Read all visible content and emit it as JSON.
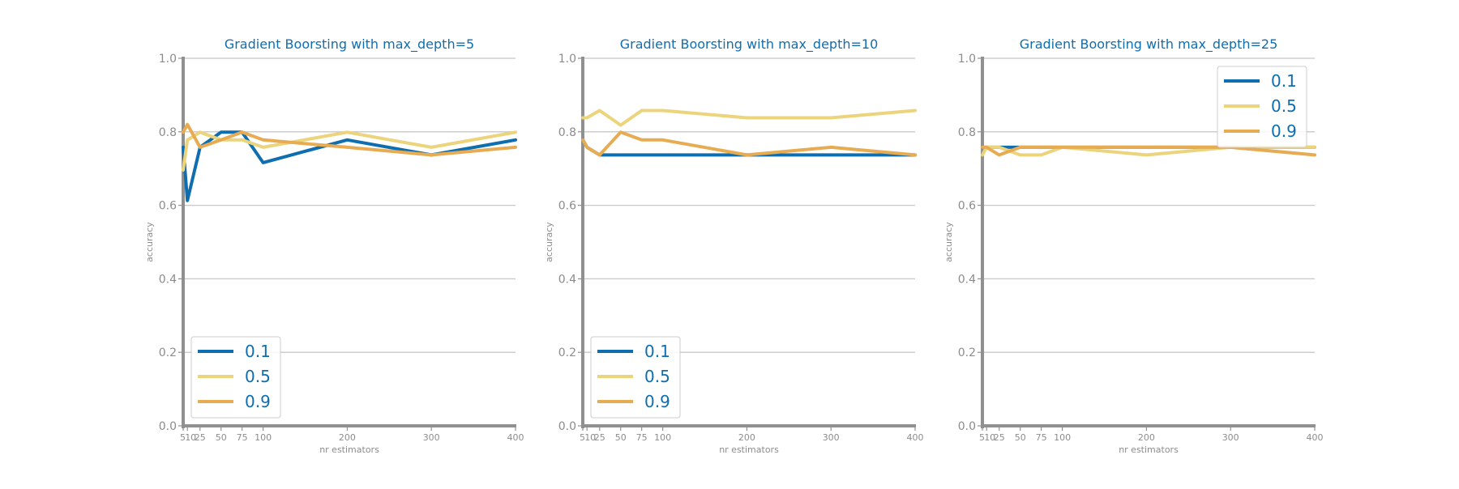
{
  "colors": {
    "series_0.1": "#0f6eaf",
    "series_0.5": "#ecd47c",
    "series_0.9": "#e7ab52",
    "axis": "#909090",
    "grid": "#c8c8c8",
    "title": "#0f6eaf",
    "tick_text": "#8c8c8c"
  },
  "chart_data": [
    {
      "type": "line",
      "title": "Gradient Boorsting with max_depth=5",
      "xlabel": "nr estimators",
      "ylabel": "accuracy",
      "x": [
        5,
        10,
        25,
        50,
        75,
        100,
        200,
        300,
        400
      ],
      "x_ticks": [
        5,
        10,
        25,
        50,
        75,
        100,
        200,
        300,
        400
      ],
      "xlim": [
        5,
        400
      ],
      "ylim": [
        0.0,
        1.0
      ],
      "y_ticks": [
        "0.0",
        "0.2",
        "0.4",
        "0.6",
        "0.8",
        "1.0"
      ],
      "grid": "horizontal",
      "legend_position": "lower-left",
      "series": [
        {
          "name": "0.1",
          "values": [
            0.758,
            0.613,
            0.758,
            0.799,
            0.799,
            0.716,
            0.778,
            0.737,
            0.778
          ]
        },
        {
          "name": "0.5",
          "values": [
            0.696,
            0.778,
            0.799,
            0.778,
            0.778,
            0.758,
            0.799,
            0.758,
            0.799
          ]
        },
        {
          "name": "0.9",
          "values": [
            0.799,
            0.82,
            0.758,
            0.778,
            0.799,
            0.778,
            0.758,
            0.737,
            0.758
          ]
        }
      ]
    },
    {
      "type": "line",
      "title": "Gradient Boorsting with max_depth=10",
      "xlabel": "nr estimators",
      "ylabel": "accuracy",
      "x": [
        5,
        10,
        25,
        50,
        75,
        100,
        200,
        300,
        400
      ],
      "x_ticks": [
        5,
        10,
        25,
        50,
        75,
        100,
        200,
        300,
        400
      ],
      "xlim": [
        5,
        400
      ],
      "ylim": [
        0.0,
        1.0
      ],
      "y_ticks": [
        "0.0",
        "0.2",
        "0.4",
        "0.6",
        "0.8",
        "1.0"
      ],
      "grid": "horizontal",
      "legend_position": "lower-left",
      "series": [
        {
          "name": "0.1",
          "values": [
            0.778,
            0.758,
            0.737,
            0.737,
            0.737,
            0.737,
            0.737,
            0.737,
            0.737
          ]
        },
        {
          "name": "0.5",
          "values": [
            0.838,
            0.838,
            0.858,
            0.818,
            0.858,
            0.858,
            0.838,
            0.838,
            0.858
          ]
        },
        {
          "name": "0.9",
          "values": [
            0.778,
            0.758,
            0.737,
            0.799,
            0.778,
            0.778,
            0.737,
            0.758,
            0.737
          ]
        }
      ]
    },
    {
      "type": "line",
      "title": "Gradient Boorsting with max_depth=25",
      "xlabel": "nr estimators",
      "ylabel": "accuracy",
      "x": [
        5,
        10,
        25,
        50,
        75,
        100,
        200,
        300,
        400
      ],
      "x_ticks": [
        5,
        10,
        25,
        50,
        75,
        100,
        200,
        300,
        400
      ],
      "xlim": [
        5,
        400
      ],
      "ylim": [
        0.0,
        1.0
      ],
      "y_ticks": [
        "0.0",
        "0.2",
        "0.4",
        "0.6",
        "0.8",
        "1.0"
      ],
      "grid": "horizontal",
      "legend_position": "upper-right",
      "series": [
        {
          "name": "0.1",
          "values": [
            0.758,
            0.758,
            0.758,
            0.758,
            0.758,
            0.758,
            0.758,
            0.758,
            0.758
          ]
        },
        {
          "name": "0.5",
          "values": [
            0.737,
            0.758,
            0.758,
            0.737,
            0.737,
            0.758,
            0.737,
            0.758,
            0.758
          ]
        },
        {
          "name": "0.9",
          "values": [
            0.758,
            0.758,
            0.737,
            0.758,
            0.758,
            0.758,
            0.758,
            0.758,
            0.737
          ]
        }
      ]
    }
  ]
}
